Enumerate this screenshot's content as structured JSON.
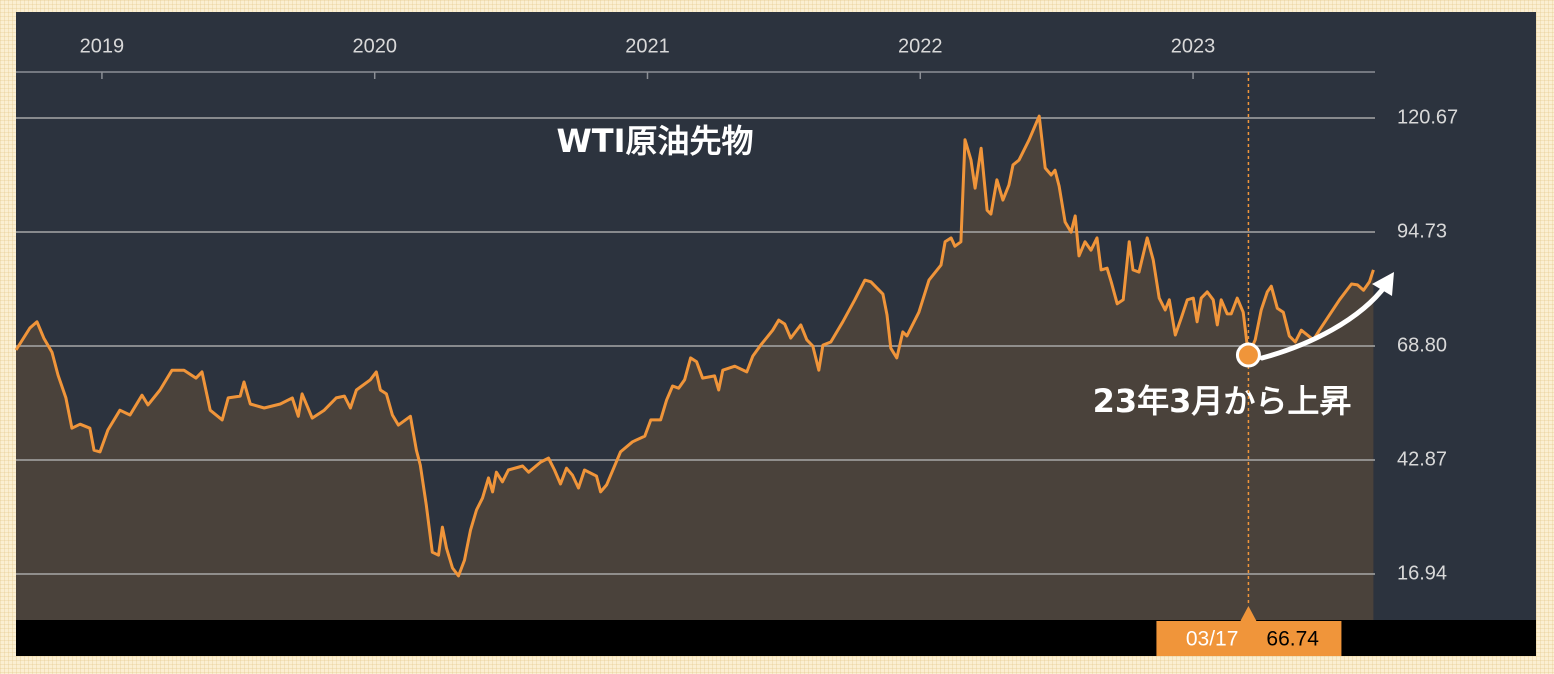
{
  "chart_data": {
    "type": "line",
    "title": "WTI原油先物",
    "annotation": "23年3月から上昇",
    "color": "#f0953a",
    "area_color": "#4a423b",
    "grid": true,
    "x": [
      2018.685,
      2018.736,
      2018.762,
      2018.787,
      2018.817,
      2018.839,
      2018.868,
      2018.89,
      2018.92,
      2018.956,
      2018.971,
      2018.993,
      2019.022,
      2019.066,
      2019.103,
      2019.147,
      2019.169,
      2019.213,
      2019.257,
      2019.301,
      2019.345,
      2019.367,
      2019.397,
      2019.441,
      2019.463,
      2019.507,
      2019.521,
      2019.544,
      2019.595,
      2019.654,
      2019.698,
      2019.72,
      2019.734,
      2019.771,
      2019.815,
      2019.859,
      2019.889,
      2019.911,
      2019.933,
      2019.984,
      2020.006,
      2020.021,
      2020.043,
      2020.065,
      2020.087,
      2020.131,
      2020.153,
      2020.167,
      2020.189,
      2020.211,
      2020.234,
      2020.248,
      2020.263,
      2020.285,
      2020.307,
      2020.329,
      2020.351,
      2020.373,
      2020.395,
      2020.417,
      2020.432,
      2020.446,
      2020.468,
      2020.49,
      2020.542,
      2020.564,
      2020.608,
      2020.637,
      2020.659,
      2020.681,
      2020.703,
      2020.725,
      2020.747,
      2020.769,
      2020.813,
      2020.828,
      2020.85,
      2020.901,
      2020.945,
      2020.99,
      2021.012,
      2021.048,
      2021.07,
      2021.092,
      2021.114,
      2021.136,
      2021.158,
      2021.18,
      2021.202,
      2021.246,
      2021.261,
      2021.276,
      2021.32,
      2021.364,
      2021.386,
      2021.415,
      2021.459,
      2021.481,
      2021.503,
      2021.525,
      2021.562,
      2021.584,
      2021.606,
      2021.628,
      2021.643,
      2021.672,
      2021.716,
      2021.76,
      2021.797,
      2021.819,
      2021.863,
      2021.878,
      2021.892,
      2021.914,
      2021.936,
      2021.951,
      2021.995,
      2022.032,
      2022.076,
      2022.091,
      2022.113,
      2022.127,
      2022.149,
      2022.164,
      2022.186,
      2022.201,
      2022.223,
      2022.245,
      2022.259,
      2022.281,
      2022.303,
      2022.325,
      2022.34,
      2022.362,
      2022.399,
      2022.436,
      2022.458,
      2022.48,
      2022.494,
      2022.509,
      2022.531,
      2022.553,
      2022.568,
      2022.582,
      2022.604,
      2022.626,
      2022.648,
      2022.663,
      2022.685,
      2022.7,
      2022.722,
      2022.744,
      2022.766,
      2022.78,
      2022.802,
      2022.832,
      2022.854,
      2022.876,
      2022.898,
      2022.913,
      2022.935,
      2022.957,
      2022.979,
      2023.001,
      2023.015,
      2023.03,
      2023.052,
      2023.074,
      2023.089,
      2023.103,
      2023.125,
      2023.14,
      2023.162,
      2023.184,
      2023.203,
      2023.228,
      2023.25,
      2023.272,
      2023.287,
      2023.309,
      2023.331,
      2023.353,
      2023.375,
      2023.397,
      2023.441,
      2023.463,
      2023.493,
      2023.537,
      2023.581,
      2023.603,
      2023.625,
      2023.647,
      2023.661
    ],
    "values": [
      67.9,
      72.9,
      74.3,
      70.6,
      67.4,
      62.2,
      57.0,
      50.1,
      51.0,
      50.1,
      45.1,
      44.7,
      49.7,
      54.2,
      53.1,
      57.6,
      55.4,
      58.8,
      63.3,
      63.3,
      61.5,
      62.9,
      54.2,
      52.0,
      57.0,
      57.4,
      60.6,
      55.6,
      54.7,
      55.6,
      57.0,
      52.8,
      57.9,
      52.4,
      54.2,
      57.0,
      57.4,
      54.7,
      58.8,
      61.1,
      62.9,
      58.8,
      57.9,
      53.1,
      50.8,
      52.8,
      45.1,
      41.7,
      32.6,
      21.9,
      21.2,
      27.6,
      22.8,
      18.3,
      16.5,
      20.1,
      26.9,
      31.5,
      34.2,
      38.8,
      35.6,
      40.1,
      37.9,
      40.6,
      41.5,
      40.1,
      42.4,
      43.3,
      40.6,
      37.4,
      41.0,
      39.4,
      36.5,
      40.6,
      39.2,
      35.6,
      37.2,
      44.7,
      47.0,
      48.3,
      52.0,
      52.0,
      56.5,
      59.7,
      59.2,
      61.1,
      66.1,
      65.2,
      61.5,
      62.0,
      58.8,
      63.3,
      64.2,
      62.9,
      66.5,
      69.0,
      72.4,
      74.7,
      73.8,
      70.6,
      73.6,
      70.2,
      68.8,
      63.3,
      69.0,
      69.7,
      74.3,
      79.3,
      83.8,
      83.4,
      80.6,
      75.9,
      68.3,
      66.1,
      72.0,
      71.1,
      76.5,
      83.8,
      87.2,
      92.5,
      93.4,
      91.5,
      92.5,
      115.7,
      111.1,
      104.7,
      113.8,
      99.7,
      98.8,
      106.6,
      102.0,
      105.4,
      110.0,
      111.1,
      115.7,
      121.1,
      109.3,
      107.7,
      108.8,
      105.2,
      97.0,
      94.7,
      98.4,
      89.3,
      92.5,
      90.6,
      93.4,
      86.1,
      86.5,
      83.4,
      78.4,
      79.3,
      92.5,
      86.1,
      85.6,
      93.4,
      88.4,
      79.7,
      77.0,
      79.3,
      71.3,
      75.2,
      79.3,
      79.7,
      74.3,
      79.7,
      81.1,
      79.3,
      73.6,
      79.3,
      76.1,
      76.1,
      79.7,
      76.5,
      66.74,
      70.2,
      77.0,
      81.1,
      82.4,
      77.4,
      76.5,
      71.1,
      69.7,
      72.4,
      70.2,
      72.4,
      75.2,
      79.3,
      82.9,
      82.7,
      81.5,
      83.4,
      86.1
    ],
    "xlim": [
      2018.685,
      2023.667
    ],
    "xticks": [
      2019,
      2020,
      2021,
      2022,
      2023
    ],
    "ylim": [
      6.47,
      131.13
    ],
    "yticks": [
      16.94,
      42.87,
      {
        "value": 68.8,
        "label": "68.80"
      },
      94.73,
      120.67
    ],
    "cursor": {
      "x": 2023.203,
      "value": 66.74,
      "date": "03/17"
    }
  }
}
